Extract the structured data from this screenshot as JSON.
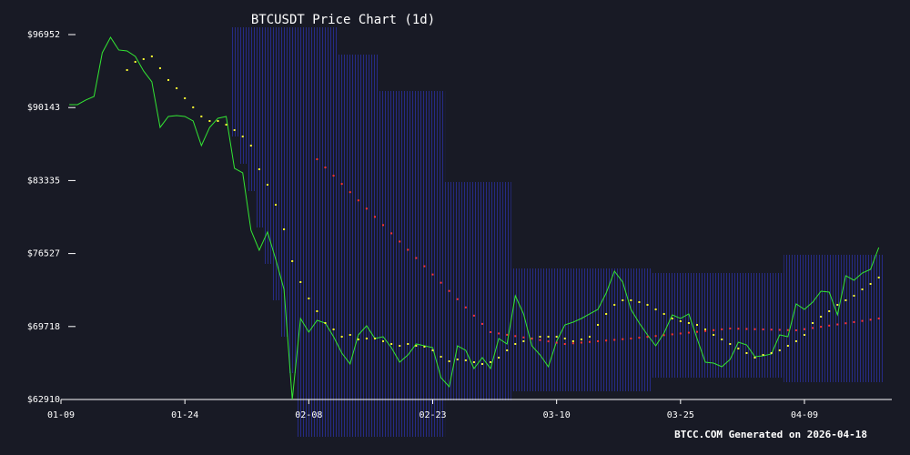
{
  "chart_data": {
    "type": "line",
    "title": "BTCUSDT Price Chart (1d)",
    "footer": "BTCC.COM Generated on 2026-04-18",
    "categories": [
      "01-09",
      "01-10",
      "01-11",
      "01-12",
      "01-13",
      "01-14",
      "01-15",
      "01-16",
      "01-17",
      "01-18",
      "01-19",
      "01-20",
      "01-21",
      "01-22",
      "01-23",
      "01-24",
      "01-25",
      "01-26",
      "01-27",
      "01-28",
      "01-29",
      "01-30",
      "01-31",
      "02-01",
      "02-02",
      "02-03",
      "02-04",
      "02-05",
      "02-06",
      "02-07",
      "02-08",
      "02-09",
      "02-10",
      "02-11",
      "02-12",
      "02-13",
      "02-14",
      "02-15",
      "02-16",
      "02-17",
      "02-18",
      "02-19",
      "02-20",
      "02-21",
      "02-22",
      "02-23",
      "02-24",
      "02-25",
      "02-26",
      "02-27",
      "02-28",
      "03-01",
      "03-02",
      "03-03",
      "03-04",
      "03-05",
      "03-06",
      "03-07",
      "03-08",
      "03-09",
      "03-10",
      "03-11",
      "03-12",
      "03-13",
      "03-14",
      "03-15",
      "03-16",
      "03-17",
      "03-18",
      "03-19",
      "03-20",
      "03-21",
      "03-22",
      "03-23",
      "03-24",
      "03-25",
      "03-26",
      "03-27",
      "03-28",
      "03-29",
      "03-30",
      "03-31",
      "04-01",
      "04-02",
      "04-03",
      "04-04",
      "04-05",
      "04-06",
      "04-07",
      "04-08",
      "04-09",
      "04-10",
      "04-11",
      "04-12",
      "04-13",
      "04-14",
      "04-15",
      "04-16",
      "04-17",
      "04-18"
    ],
    "xticks": [
      "01-09",
      "01-24",
      "02-08",
      "02-23",
      "03-10",
      "03-25",
      "04-09"
    ],
    "ylim": [
      62910,
      96952
    ],
    "yticks": [
      {
        "value": 62910,
        "label": "$62910"
      },
      {
        "value": 69718,
        "label": "$69718"
      },
      {
        "value": 76527,
        "label": "$76527"
      },
      {
        "value": 83335,
        "label": "$83335"
      },
      {
        "value": 90143,
        "label": "$90143"
      },
      {
        "value": 96952,
        "label": "$96952"
      }
    ],
    "band": {
      "color": "#262b86",
      "upper": [
        null,
        null,
        null,
        null,
        null,
        null,
        null,
        null,
        null,
        null,
        null,
        null,
        null,
        null,
        null,
        null,
        null,
        null,
        null,
        null,
        null,
        97634,
        97634,
        97634,
        97634,
        97634,
        97634,
        97634,
        97634,
        97634,
        97634,
        97634,
        97634,
        97634,
        95087,
        95087,
        95087,
        95087,
        95087,
        91691,
        91691,
        91691,
        91691,
        91691,
        91691,
        91691,
        91691,
        83201,
        83201,
        83201,
        83201,
        83201,
        83201,
        83201,
        83201,
        75136,
        75136,
        75136,
        75136,
        75136,
        75136,
        75136,
        75136,
        75136,
        75136,
        75136,
        75136,
        75136,
        75136,
        75136,
        75136,
        75136,
        74711,
        74711,
        74711,
        74711,
        74711,
        74711,
        74711,
        74711,
        74711,
        74711,
        74711,
        74711,
        74711,
        74711,
        74711,
        74711,
        76409,
        76409,
        76409,
        76409,
        76409,
        76409,
        76409,
        76409,
        76409,
        76409,
        76409,
        76409
      ],
      "lower": [
        null,
        null,
        null,
        null,
        null,
        null,
        null,
        null,
        null,
        null,
        null,
        null,
        null,
        null,
        null,
        null,
        null,
        null,
        null,
        null,
        null,
        87446,
        84899,
        82352,
        78956,
        75560,
        72164,
        68768,
        65372,
        59429,
        59429,
        59429,
        59429,
        59429,
        59429,
        59429,
        59429,
        59429,
        59429,
        59429,
        59429,
        59429,
        59429,
        59429,
        59429,
        59429,
        59429,
        62825,
        62825,
        62825,
        62825,
        62825,
        62825,
        62825,
        62825,
        63674,
        63674,
        63674,
        63674,
        63674,
        63674,
        63674,
        63674,
        63674,
        63674,
        63674,
        63674,
        63674,
        63674,
        63674,
        63674,
        63674,
        64948,
        64948,
        64948,
        64948,
        64948,
        64948,
        64948,
        64948,
        64948,
        64948,
        64948,
        64948,
        64948,
        64948,
        64948,
        64948,
        64523,
        64523,
        64523,
        64523,
        64523,
        64523,
        64523,
        64523,
        64523,
        64523,
        64523,
        64523
      ]
    },
    "series": [
      {
        "color": "#33e633",
        "style": "line",
        "values": [
          null,
          90418,
          90418,
          90842,
          91182,
          95257,
          96700,
          95512,
          95427,
          94917,
          93559,
          92540,
          88295,
          89314,
          89399,
          89314,
          88889,
          86597,
          88295,
          89144,
          89314,
          84475,
          84050,
          78701,
          76834,
          78532,
          75985,
          73183,
          62910,
          70466,
          69193,
          70296,
          70042,
          68768,
          67240,
          66221,
          68938,
          69787,
          68598,
          68768,
          67749,
          66391,
          67070,
          68089,
          67919,
          67749,
          64948,
          64099,
          67919,
          67495,
          65797,
          66815,
          65797,
          68598,
          68089,
          72589,
          70891,
          67919,
          67070,
          65966,
          68344,
          69872,
          70127,
          70466,
          70891,
          71315,
          72843,
          74881,
          73862,
          71315,
          70042,
          68938,
          67919,
          69108,
          70806,
          70466,
          70891,
          68598,
          66391,
          66306,
          65966,
          66646,
          68259,
          68004,
          66900,
          66985,
          67155,
          68938,
          68768,
          71825,
          71315,
          71994,
          73013,
          72928,
          70806,
          74456,
          74032,
          74711,
          75051,
          77088
        ]
      },
      {
        "color": "#ffff33",
        "style": "dots",
        "values": [
          null,
          null,
          null,
          null,
          null,
          null,
          null,
          null,
          93644,
          94408,
          94663,
          94917,
          93814,
          92710,
          91946,
          91012,
          90163,
          89314,
          88889,
          88889,
          88550,
          88040,
          87446,
          86597,
          84390,
          82946,
          81079,
          78786,
          75815,
          73862,
          72334,
          71145,
          70042,
          69447,
          68768,
          68938,
          68513,
          68598,
          68598,
          68344,
          68089,
          67919,
          68089,
          67919,
          67834,
          67495,
          66900,
          66476,
          66646,
          66561,
          66391,
          66221,
          66391,
          66815,
          67495,
          68089,
          68344,
          68598,
          68768,
          68768,
          68768,
          68598,
          68344,
          68513,
          68768,
          69872,
          70891,
          71740,
          72164,
          72164,
          71994,
          71740,
          71315,
          70891,
          70466,
          70211,
          70042,
          69872,
          69447,
          68938,
          68513,
          68089,
          67664,
          67240,
          66815,
          67070,
          67240,
          67495,
          67919,
          68344,
          68938,
          70042,
          70636,
          71145,
          71740,
          72164,
          72589,
          73183,
          73692,
          74287
        ]
      },
      {
        "color": "#ff3333",
        "style": "dots",
        "values": [
          null,
          null,
          null,
          null,
          null,
          null,
          null,
          null,
          null,
          null,
          null,
          null,
          null,
          null,
          null,
          null,
          null,
          null,
          null,
          null,
          null,
          null,
          null,
          null,
          null,
          null,
          null,
          null,
          null,
          null,
          null,
          85324,
          84556,
          83788,
          83020,
          82252,
          81484,
          80716,
          79948,
          79180,
          78412,
          77644,
          76876,
          76108,
          75340,
          74572,
          73804,
          73036,
          72268,
          71500,
          70732,
          69964,
          69193,
          69070,
          68947,
          68824,
          68701,
          68578,
          68455,
          68332,
          68210,
          68089,
          68153,
          68217,
          68281,
          68345,
          68409,
          68473,
          68537,
          68598,
          68676,
          68754,
          68832,
          68910,
          68988,
          69066,
          69144,
          69222,
          69300,
          69378,
          69456,
          69532,
          69511,
          69490,
          69469,
          69448,
          69427,
          69406,
          69385,
          69362,
          69472,
          69582,
          69692,
          69802,
          69912,
          70022,
          70132,
          70242,
          70352,
          70466
        ]
      }
    ]
  }
}
